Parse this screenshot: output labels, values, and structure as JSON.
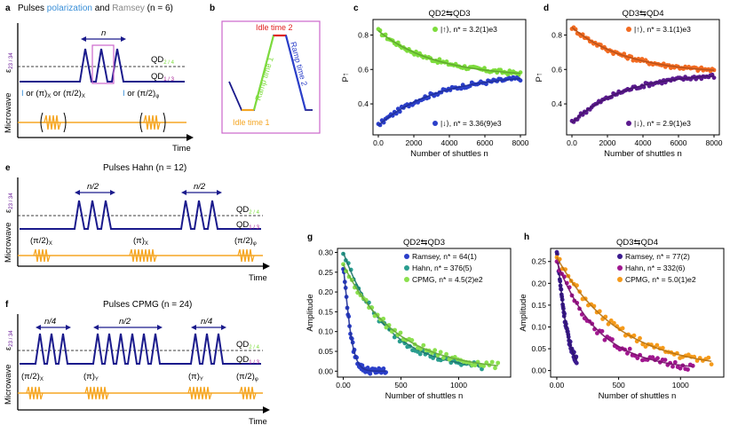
{
  "panel_letters": {
    "a": "a",
    "b": "b",
    "c": "c",
    "d": "d",
    "e": "e",
    "f": "f",
    "g": "g",
    "h": "h"
  },
  "colors": {
    "navy": "#1a1a8c",
    "orange": "#f5a623",
    "green": "#7ddc3c",
    "blue": "#2b3fc9",
    "purple": "#6a1b9a",
    "teal": "#2a9d8f",
    "magenta": "#a0178f",
    "lime": "#8be04e",
    "pink": "#cc66cc",
    "orange_d": "#f08a00",
    "red_d": "#e34a33",
    "gray": "#888888",
    "lightblue": "#3a8fd8"
  },
  "panel_a": {
    "title_1": "Pulses",
    "title_2": "polarization",
    "title_3": "and",
    "title_4": "Ramsey",
    "title_5": "(n = 6)",
    "n_label": "n",
    "qd_top": "QD",
    "qd_top_sub": "2 / 4",
    "qd_bottom": "QD",
    "qd_bottom_sub": "1 / 3",
    "eps_label": "ε",
    "eps_sub": "23 / 34",
    "mw_label": "Microwave",
    "ops_I": "I",
    "ops_or1": "or (π)",
    "ops_x": "X",
    "ops_or2": "or (π/2)",
    "ops_x2": "X",
    "ops_I2": "I",
    "ops_or3": "or (π/2)",
    "ops_phi": "φ",
    "time": "Time"
  },
  "panel_b": {
    "idle1": "Idle time 1",
    "idle2": "Idle time 2",
    "ramp1": "Ramp time 1",
    "ramp2": "Ramp time 2"
  },
  "panel_e": {
    "title": "Pulses Hahn (n = 12)",
    "half1": "n/2",
    "half2": "n/2",
    "qd_top": "QD",
    "qd_top_sub": "2 / 4",
    "qd_bottom": "QD",
    "qd_bottom_sub": "1 / 3",
    "eps_label": "ε",
    "eps_sub": "23 / 34",
    "mw_label": "Microwave",
    "op1": "(π/2)",
    "op1_sub": "X",
    "op2": "(π)",
    "op2_sub": "X",
    "op3": "(π/2)",
    "op3_sub": "φ",
    "time": "Time"
  },
  "panel_f": {
    "title": "Pulses CPMG (n = 24)",
    "q1": "n/4",
    "half": "n/2",
    "q2": "n/4",
    "qd_top": "QD",
    "qd_top_sub": "2 / 4",
    "qd_bottom": "QD",
    "qd_bottom_sub": "1 / 3",
    "eps_label": "ε",
    "eps_sub": "23 / 34",
    "mw_label": "Microwave",
    "op1": "(π/2)",
    "op1_sub": "X",
    "op2": "(π)",
    "op2_sub": "Y",
    "op3": "(π)",
    "op3_sub": "Y",
    "op4": "(π/2)",
    "op4_sub": "φ",
    "time": "Time"
  },
  "chart_data": [
    {
      "id": "c",
      "type": "scatter",
      "title": "QD2⇆QD3",
      "xlabel": "Number of shuttles n",
      "ylabel": "P↑",
      "xlim": [
        -300,
        8300
      ],
      "ylim": [
        0.22,
        0.89
      ],
      "xticks": [
        0,
        2000,
        4000,
        6000,
        8000
      ],
      "yticks": [
        0.4,
        0.6,
        0.8
      ],
      "series": [
        {
          "name": "|↑⟩, n* = 3.2(1)e3",
          "color": "#7ddc3c",
          "fit": {
            "a": 0.555,
            "b": 0.27,
            "tau": 3200
          }
        },
        {
          "name": "|↓⟩, n* = 3.36(9)e3",
          "color": "#2b3fc9",
          "fit": {
            "a": 0.575,
            "b": -0.3,
            "tau": 3360
          }
        }
      ]
    },
    {
      "id": "d",
      "type": "scatter",
      "title": "QD3⇆QD4",
      "xlabel": "Number of shuttles n",
      "ylabel": "P↑",
      "xlim": [
        -300,
        8300
      ],
      "ylim": [
        0.22,
        0.89
      ],
      "xticks": [
        0,
        2000,
        4000,
        6000,
        8000
      ],
      "yticks": [
        0.4,
        0.6,
        0.8
      ],
      "series": [
        {
          "name": "|↑⟩, n* = 3.1(1)e3",
          "color": "#f26b21",
          "fit": {
            "a": 0.575,
            "b": 0.27,
            "tau": 3100
          }
        },
        {
          "name": "|↓⟩, n* = 2.9(1)e3",
          "color": "#5b1a8e",
          "fit": {
            "a": 0.58,
            "b": -0.29,
            "tau": 2900
          }
        }
      ]
    },
    {
      "id": "g",
      "type": "scatter",
      "title": "QD2⇆QD3",
      "xlabel": "Number of shuttles n",
      "ylabel": "Amplitude",
      "xlim": [
        -50,
        1450
      ],
      "ylim": [
        -0.015,
        0.31
      ],
      "xticks": [
        0,
        500,
        1000
      ],
      "yticks": [
        0.0,
        0.05,
        0.1,
        0.15,
        0.2,
        0.25,
        0.3
      ],
      "series": [
        {
          "name": "Ramsey, n* = 64(1)",
          "color": "#2b3fc9",
          "fit": {
            "amp": 0.26,
            "tau": 64,
            "beta": 1.3,
            "xmax": 370
          }
        },
        {
          "name": "Hahn, n* = 376(5)",
          "color": "#2a9d8f",
          "fit": {
            "amp": 0.3,
            "tau": 376,
            "beta": 1.0,
            "xmax": 1200
          }
        },
        {
          "name": "CPMG, n* = 4.5(2)e2",
          "color": "#8be04e",
          "fit": {
            "amp": 0.27,
            "tau": 450,
            "beta": 1.0,
            "xmax": 1340
          }
        }
      ]
    },
    {
      "id": "h",
      "type": "scatter",
      "title": "QD3⇆QD4",
      "xlabel": "Number of shuttles n",
      "ylabel": "Amplitude",
      "xlim": [
        -50,
        1350
      ],
      "ylim": [
        -0.015,
        0.28
      ],
      "xticks": [
        0,
        500,
        1000
      ],
      "yticks": [
        0.0,
        0.05,
        0.1,
        0.15,
        0.2,
        0.25
      ],
      "series": [
        {
          "name": "Ramsey, n* = 77(2)",
          "color": "#3b1a8e",
          "fit": {
            "amp": 0.27,
            "tau": 77,
            "beta": 1.2,
            "xmax": 160
          }
        },
        {
          "name": "Hahn, n* = 332(6)",
          "color": "#a0178f",
          "fit": {
            "amp": 0.25,
            "tau": 332,
            "beta": 1.0,
            "xmax": 1100
          }
        },
        {
          "name": "CPMG, n* = 5.0(1)e2",
          "color": "#f59a1a",
          "fit": {
            "amp": 0.26,
            "tau": 500,
            "beta": 1.0,
            "xmax": 1250
          }
        }
      ]
    }
  ]
}
